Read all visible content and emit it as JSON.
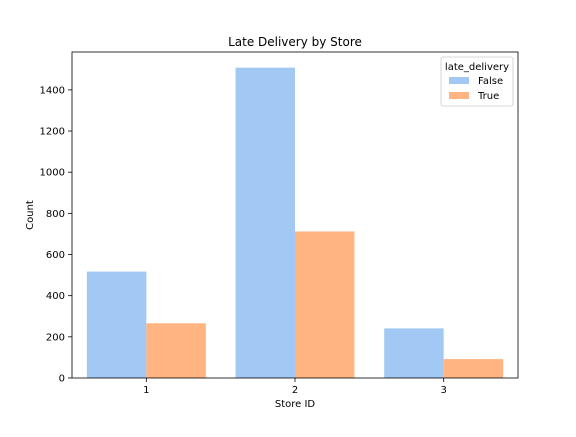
{
  "chart_data": {
    "type": "bar",
    "title": "Late Delivery by Store",
    "xlabel": "Store ID",
    "ylabel": "Count",
    "categories": [
      "1",
      "2",
      "3"
    ],
    "series": [
      {
        "name": "False",
        "values": [
          517,
          1508,
          241
        ],
        "color": "#a1c9f4"
      },
      {
        "name": "True",
        "values": [
          266,
          712,
          92
        ],
        "color": "#ffb482"
      }
    ],
    "ylim": [
      0,
      1584
    ],
    "yticks": [
      0,
      200,
      400,
      600,
      800,
      1000,
      1200,
      1400
    ],
    "legend": {
      "title": "late_delivery",
      "position": "top-right"
    },
    "grid": false
  }
}
